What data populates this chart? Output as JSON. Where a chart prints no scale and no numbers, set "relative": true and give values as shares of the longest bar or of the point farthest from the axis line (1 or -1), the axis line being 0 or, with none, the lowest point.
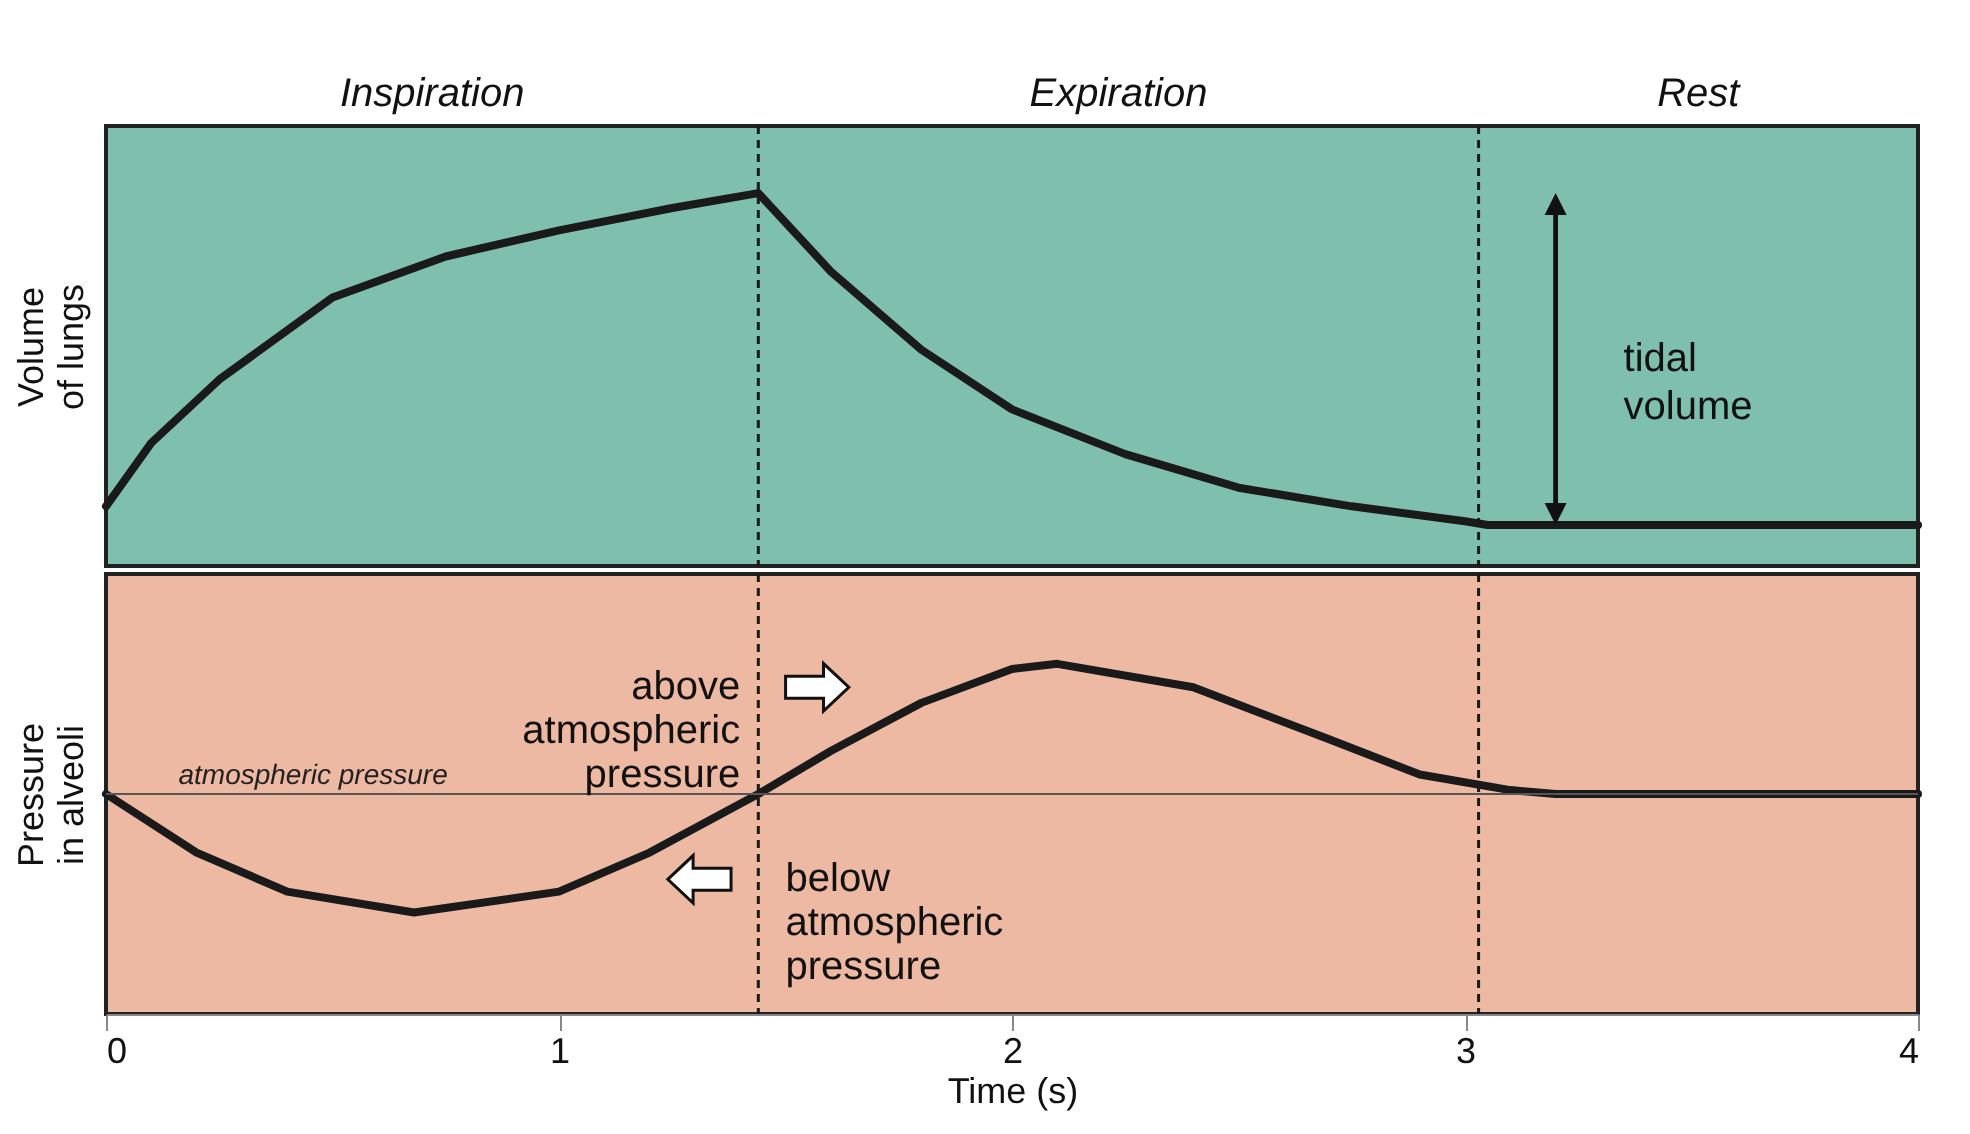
{
  "chart_data": [
    {
      "type": "line",
      "relative": true,
      "ylabel": "Volume of lungs",
      "xlim": [
        0,
        4
      ],
      "tick_labels": false,
      "grid": false,
      "marker": "none",
      "line_style": "solid",
      "x": [
        0,
        0.1,
        0.25,
        0.5,
        0.75,
        1.0,
        1.25,
        1.44,
        1.6,
        1.8,
        2.0,
        2.25,
        2.5,
        2.75,
        3.0,
        3.05,
        4.0
      ],
      "series": [
        {
          "color": "#1a1a1a",
          "values": [
            0.16,
            0.33,
            0.5,
            0.72,
            0.83,
            0.9,
            0.96,
            1,
            0.79,
            0.58,
            0.42,
            0.3,
            0.21,
            0.16,
            0.12,
            0.11,
            0.11
          ]
        }
      ],
      "ref_lines": [
        {
          "axis": "x",
          "value": 1.44,
          "line_style": "dashed",
          "color": "#1a1a1a"
        },
        {
          "axis": "x",
          "value": 3.03,
          "line_style": "dashed",
          "color": "#1a1a1a"
        }
      ],
      "annotations": [
        "Inspiration",
        "Expiration",
        "Rest",
        "tidal volume"
      ]
    },
    {
      "type": "line",
      "relative": true,
      "ylabel": "Pressure in alveoli",
      "xlabel": "Time (s)",
      "xlim": [
        0,
        4
      ],
      "xticks": [
        0,
        1,
        2,
        3,
        4
      ],
      "tick_labels": "x",
      "grid": false,
      "marker": "none",
      "line_style": "solid",
      "x": [
        0,
        0.2,
        0.4,
        0.68,
        1.0,
        1.2,
        1.44,
        1.6,
        1.8,
        2.0,
        2.1,
        2.4,
        2.7,
        2.9,
        3.1,
        3.2,
        4.0
      ],
      "series": [
        {
          "color": "#1a1a1a",
          "values": [
            0,
            -0.45,
            -0.75,
            -0.91,
            -0.75,
            -0.45,
            0,
            0.33,
            0.7,
            0.96,
            1,
            0.82,
            0.42,
            0.15,
            0.03,
            0,
            0
          ]
        }
      ],
      "ref_lines": [
        {
          "axis": "x",
          "value": 1.44,
          "line_style": "dashed",
          "color": "#1a1a1a"
        },
        {
          "axis": "x",
          "value": 3.03,
          "line_style": "dashed",
          "color": "#1a1a1a"
        },
        {
          "axis": "y",
          "value": 0,
          "label": "atmospheric pressure",
          "line_style": "solid",
          "color": "#555555"
        }
      ],
      "annotations": [
        "above atmospheric pressure",
        "below atmospheric pressure"
      ]
    }
  ]
}
